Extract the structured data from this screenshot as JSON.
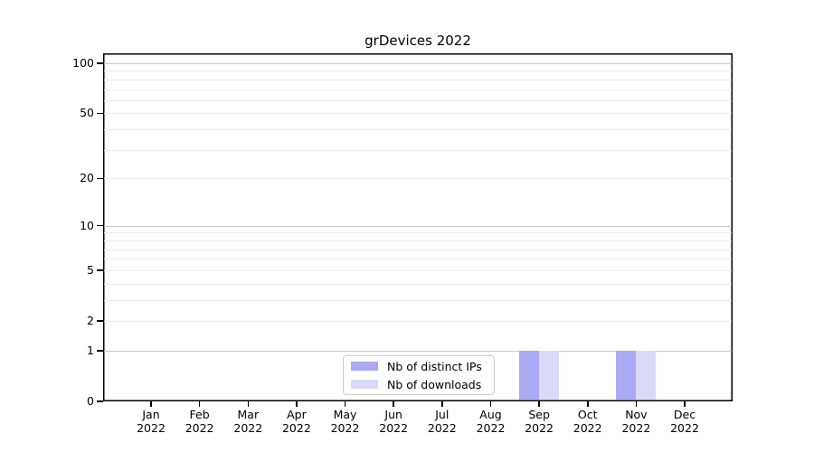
{
  "chart_data": {
    "type": "bar",
    "title": "grDevices 2022",
    "categories": [
      "Jan",
      "Feb",
      "Mar",
      "Apr",
      "May",
      "Jun",
      "Jul",
      "Aug",
      "Sep",
      "Oct",
      "Nov",
      "Dec"
    ],
    "year": "2022",
    "series": [
      {
        "name": "Nb of distinct IPs",
        "color": "#a9a9f4",
        "values": [
          0,
          0,
          0,
          0,
          0,
          0,
          0,
          0,
          1,
          0,
          1,
          0
        ]
      },
      {
        "name": "Nb of downloads",
        "color": "#dadaf8",
        "values": [
          0,
          0,
          0,
          0,
          0,
          0,
          0,
          0,
          1,
          0,
          1,
          0
        ]
      }
    ],
    "yscale": "log1p",
    "ylim": [
      0,
      100
    ],
    "yticks": [
      0,
      1,
      2,
      5,
      10,
      20,
      50,
      100
    ],
    "major_gridlines": [
      1,
      10,
      100
    ],
    "minor_gridlines": [
      2,
      3,
      4,
      5,
      6,
      7,
      8,
      9,
      20,
      30,
      40,
      50,
      60,
      70,
      80,
      90
    ],
    "legend_position": "bottom-center",
    "grid": true
  },
  "style": {
    "major_grid_color": "#c8c8c8",
    "minor_grid_color": "#ededed",
    "spine_color": "#000000",
    "text_color": "#000000",
    "background": "#ffffff"
  }
}
